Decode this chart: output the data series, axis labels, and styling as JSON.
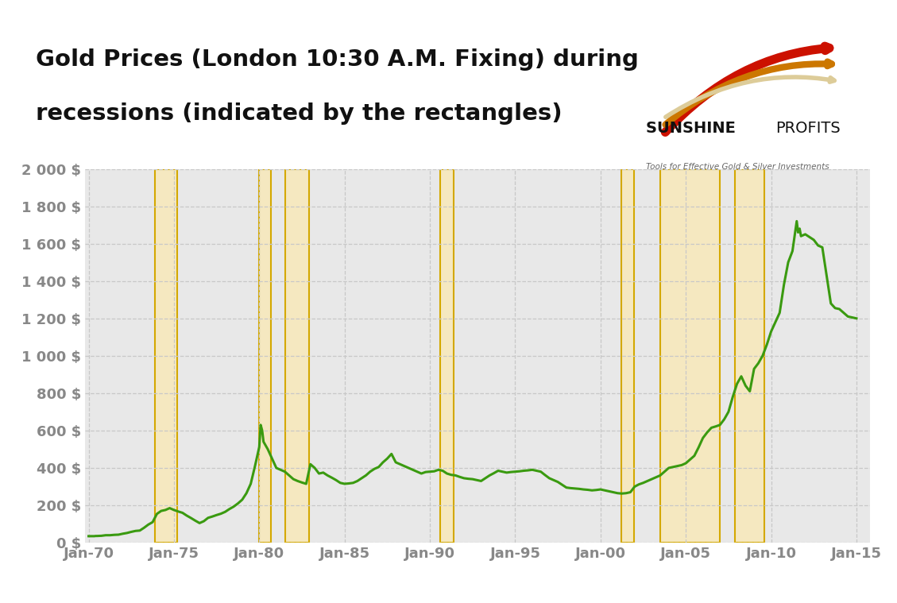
{
  "title_line1": "Gold Prices (London 10:30 A.M. Fixing) during",
  "title_line2": "recessions (indicated by the rectangles)",
  "title_fontsize": 21,
  "background_color": "#ffffff",
  "plot_bg_color": "#e8e8e8",
  "line_color": "#3a9a10",
  "line_width": 2.2,
  "recession_fill_color": "#f5e8c0",
  "recession_edge_color": "#d4a800",
  "recession_edge_width": 1.5,
  "grid_color": "#c8c8c8",
  "grid_linestyle": "--",
  "ytick_labels": [
    "0 $",
    "200 $",
    "400 $",
    "600 $",
    "800 $",
    "1 000 $",
    "1 200 $",
    "1 400 $",
    "1 600 $",
    "1 800 $",
    "2 000 $"
  ],
  "ytick_values": [
    0,
    200,
    400,
    600,
    800,
    1000,
    1200,
    1400,
    1600,
    1800,
    2000
  ],
  "xtick_labels": [
    "Jan-70",
    "Jan-75",
    "Jan-80",
    "Jan-85",
    "Jan-90",
    "Jan-95",
    "Jan-00",
    "Jan-05",
    "Jan-10",
    "Jan-15"
  ],
  "xtick_values": [
    1970,
    1975,
    1980,
    1985,
    1990,
    1995,
    2000,
    2005,
    2010,
    2015
  ],
  "ylim": [
    0,
    2000
  ],
  "xlim": [
    1969.8,
    2015.8
  ],
  "recessions": [
    [
      1973.9,
      1975.2
    ],
    [
      1980.0,
      1980.7
    ],
    [
      1981.5,
      1982.9
    ],
    [
      1990.6,
      1991.4
    ],
    [
      2001.2,
      2001.95
    ],
    [
      2001.95,
      2001.95
    ],
    [
      2003.5,
      2007.0
    ],
    [
      2007.9,
      2009.6
    ]
  ],
  "gold_data": [
    [
      1970.0,
      35
    ],
    [
      1970.08,
      35
    ],
    [
      1970.17,
      35
    ],
    [
      1970.25,
      35
    ],
    [
      1970.33,
      35
    ],
    [
      1970.42,
      36
    ],
    [
      1970.5,
      36
    ],
    [
      1970.75,
      37
    ],
    [
      1971.0,
      40
    ],
    [
      1971.25,
      40
    ],
    [
      1971.5,
      42
    ],
    [
      1971.75,
      43
    ],
    [
      1972.0,
      48
    ],
    [
      1972.25,
      52
    ],
    [
      1972.5,
      58
    ],
    [
      1972.75,
      63
    ],
    [
      1973.0,
      65
    ],
    [
      1973.25,
      80
    ],
    [
      1973.5,
      97
    ],
    [
      1973.75,
      110
    ],
    [
      1974.0,
      154
    ],
    [
      1974.25,
      170
    ],
    [
      1974.5,
      175
    ],
    [
      1974.75,
      185
    ],
    [
      1975.0,
      175
    ],
    [
      1975.25,
      167
    ],
    [
      1975.5,
      160
    ],
    [
      1975.75,
      145
    ],
    [
      1976.0,
      132
    ],
    [
      1976.25,
      118
    ],
    [
      1976.5,
      105
    ],
    [
      1976.75,
      115
    ],
    [
      1977.0,
      133
    ],
    [
      1977.25,
      140
    ],
    [
      1977.5,
      148
    ],
    [
      1977.75,
      155
    ],
    [
      1978.0,
      165
    ],
    [
      1978.25,
      180
    ],
    [
      1978.5,
      193
    ],
    [
      1978.75,
      210
    ],
    [
      1979.0,
      230
    ],
    [
      1979.25,
      265
    ],
    [
      1979.5,
      315
    ],
    [
      1979.75,
      410
    ],
    [
      1980.0,
      512
    ],
    [
      1980.083,
      630
    ],
    [
      1980.17,
      600
    ],
    [
      1980.25,
      540
    ],
    [
      1980.5,
      500
    ],
    [
      1980.75,
      450
    ],
    [
      1981.0,
      400
    ],
    [
      1981.25,
      390
    ],
    [
      1981.5,
      380
    ],
    [
      1981.75,
      360
    ],
    [
      1982.0,
      340
    ],
    [
      1982.25,
      330
    ],
    [
      1982.5,
      322
    ],
    [
      1982.75,
      315
    ],
    [
      1983.0,
      420
    ],
    [
      1983.25,
      400
    ],
    [
      1983.5,
      370
    ],
    [
      1983.75,
      375
    ],
    [
      1984.0,
      360
    ],
    [
      1984.25,
      348
    ],
    [
      1984.5,
      335
    ],
    [
      1984.75,
      320
    ],
    [
      1985.0,
      315
    ],
    [
      1985.25,
      317
    ],
    [
      1985.5,
      320
    ],
    [
      1985.75,
      330
    ],
    [
      1986.0,
      345
    ],
    [
      1986.25,
      360
    ],
    [
      1986.5,
      380
    ],
    [
      1986.75,
      395
    ],
    [
      1987.0,
      405
    ],
    [
      1987.25,
      430
    ],
    [
      1987.5,
      450
    ],
    [
      1987.75,
      475
    ],
    [
      1988.0,
      430
    ],
    [
      1988.25,
      420
    ],
    [
      1988.5,
      410
    ],
    [
      1988.75,
      400
    ],
    [
      1989.0,
      390
    ],
    [
      1989.25,
      380
    ],
    [
      1989.5,
      370
    ],
    [
      1989.75,
      378
    ],
    [
      1990.0,
      380
    ],
    [
      1990.25,
      382
    ],
    [
      1990.5,
      390
    ],
    [
      1990.75,
      385
    ],
    [
      1991.0,
      370
    ],
    [
      1991.25,
      363
    ],
    [
      1991.5,
      360
    ],
    [
      1991.75,
      352
    ],
    [
      1992.0,
      345
    ],
    [
      1992.25,
      342
    ],
    [
      1992.5,
      340
    ],
    [
      1992.75,
      335
    ],
    [
      1993.0,
      330
    ],
    [
      1993.25,
      345
    ],
    [
      1993.5,
      360
    ],
    [
      1993.75,
      372
    ],
    [
      1994.0,
      385
    ],
    [
      1994.25,
      380
    ],
    [
      1994.5,
      375
    ],
    [
      1994.75,
      378
    ],
    [
      1995.0,
      380
    ],
    [
      1995.25,
      382
    ],
    [
      1995.5,
      385
    ],
    [
      1995.75,
      387
    ],
    [
      1996.0,
      390
    ],
    [
      1996.25,
      385
    ],
    [
      1996.5,
      380
    ],
    [
      1996.75,
      362
    ],
    [
      1997.0,
      345
    ],
    [
      1997.25,
      335
    ],
    [
      1997.5,
      325
    ],
    [
      1997.75,
      310
    ],
    [
      1998.0,
      295
    ],
    [
      1998.25,
      292
    ],
    [
      1998.5,
      290
    ],
    [
      1998.75,
      288
    ],
    [
      1999.0,
      285
    ],
    [
      1999.25,
      283
    ],
    [
      1999.5,
      280
    ],
    [
      1999.75,
      282
    ],
    [
      2000.0,
      285
    ],
    [
      2000.25,
      280
    ],
    [
      2000.5,
      275
    ],
    [
      2000.75,
      270
    ],
    [
      2001.0,
      265
    ],
    [
      2001.25,
      263
    ],
    [
      2001.5,
      265
    ],
    [
      2001.75,
      270
    ],
    [
      2002.0,
      300
    ],
    [
      2002.25,
      312
    ],
    [
      2002.5,
      320
    ],
    [
      2002.75,
      330
    ],
    [
      2003.0,
      340
    ],
    [
      2003.25,
      350
    ],
    [
      2003.5,
      360
    ],
    [
      2003.75,
      380
    ],
    [
      2004.0,
      400
    ],
    [
      2004.25,
      405
    ],
    [
      2004.5,
      410
    ],
    [
      2004.75,
      415
    ],
    [
      2005.0,
      425
    ],
    [
      2005.25,
      445
    ],
    [
      2005.5,
      465
    ],
    [
      2005.75,
      510
    ],
    [
      2006.0,
      560
    ],
    [
      2006.25,
      590
    ],
    [
      2006.5,
      615
    ],
    [
      2006.75,
      622
    ],
    [
      2007.0,
      630
    ],
    [
      2007.25,
      660
    ],
    [
      2007.5,
      700
    ],
    [
      2007.75,
      780
    ],
    [
      2008.0,
      850
    ],
    [
      2008.25,
      890
    ],
    [
      2008.5,
      840
    ],
    [
      2008.75,
      810
    ],
    [
      2009.0,
      930
    ],
    [
      2009.25,
      960
    ],
    [
      2009.5,
      1000
    ],
    [
      2009.75,
      1060
    ],
    [
      2010.0,
      1130
    ],
    [
      2010.25,
      1180
    ],
    [
      2010.5,
      1230
    ],
    [
      2010.75,
      1380
    ],
    [
      2011.0,
      1500
    ],
    [
      2011.25,
      1560
    ],
    [
      2011.5,
      1720
    ],
    [
      2011.58,
      1660
    ],
    [
      2011.67,
      1680
    ],
    [
      2011.75,
      1640
    ],
    [
      2012.0,
      1650
    ],
    [
      2012.25,
      1635
    ],
    [
      2012.5,
      1620
    ],
    [
      2012.75,
      1590
    ],
    [
      2013.0,
      1580
    ],
    [
      2013.25,
      1430
    ],
    [
      2013.5,
      1280
    ],
    [
      2013.75,
      1255
    ],
    [
      2014.0,
      1250
    ],
    [
      2014.25,
      1230
    ],
    [
      2014.5,
      1210
    ],
    [
      2014.75,
      1205
    ],
    [
      2015.0,
      1200
    ]
  ],
  "sunshine_text": "SUNSHINE PROFITS",
  "sunshine_sub": "Tools for Effective Gold & Silver Investments",
  "tick_fontsize": 13,
  "tick_color": "#888888"
}
